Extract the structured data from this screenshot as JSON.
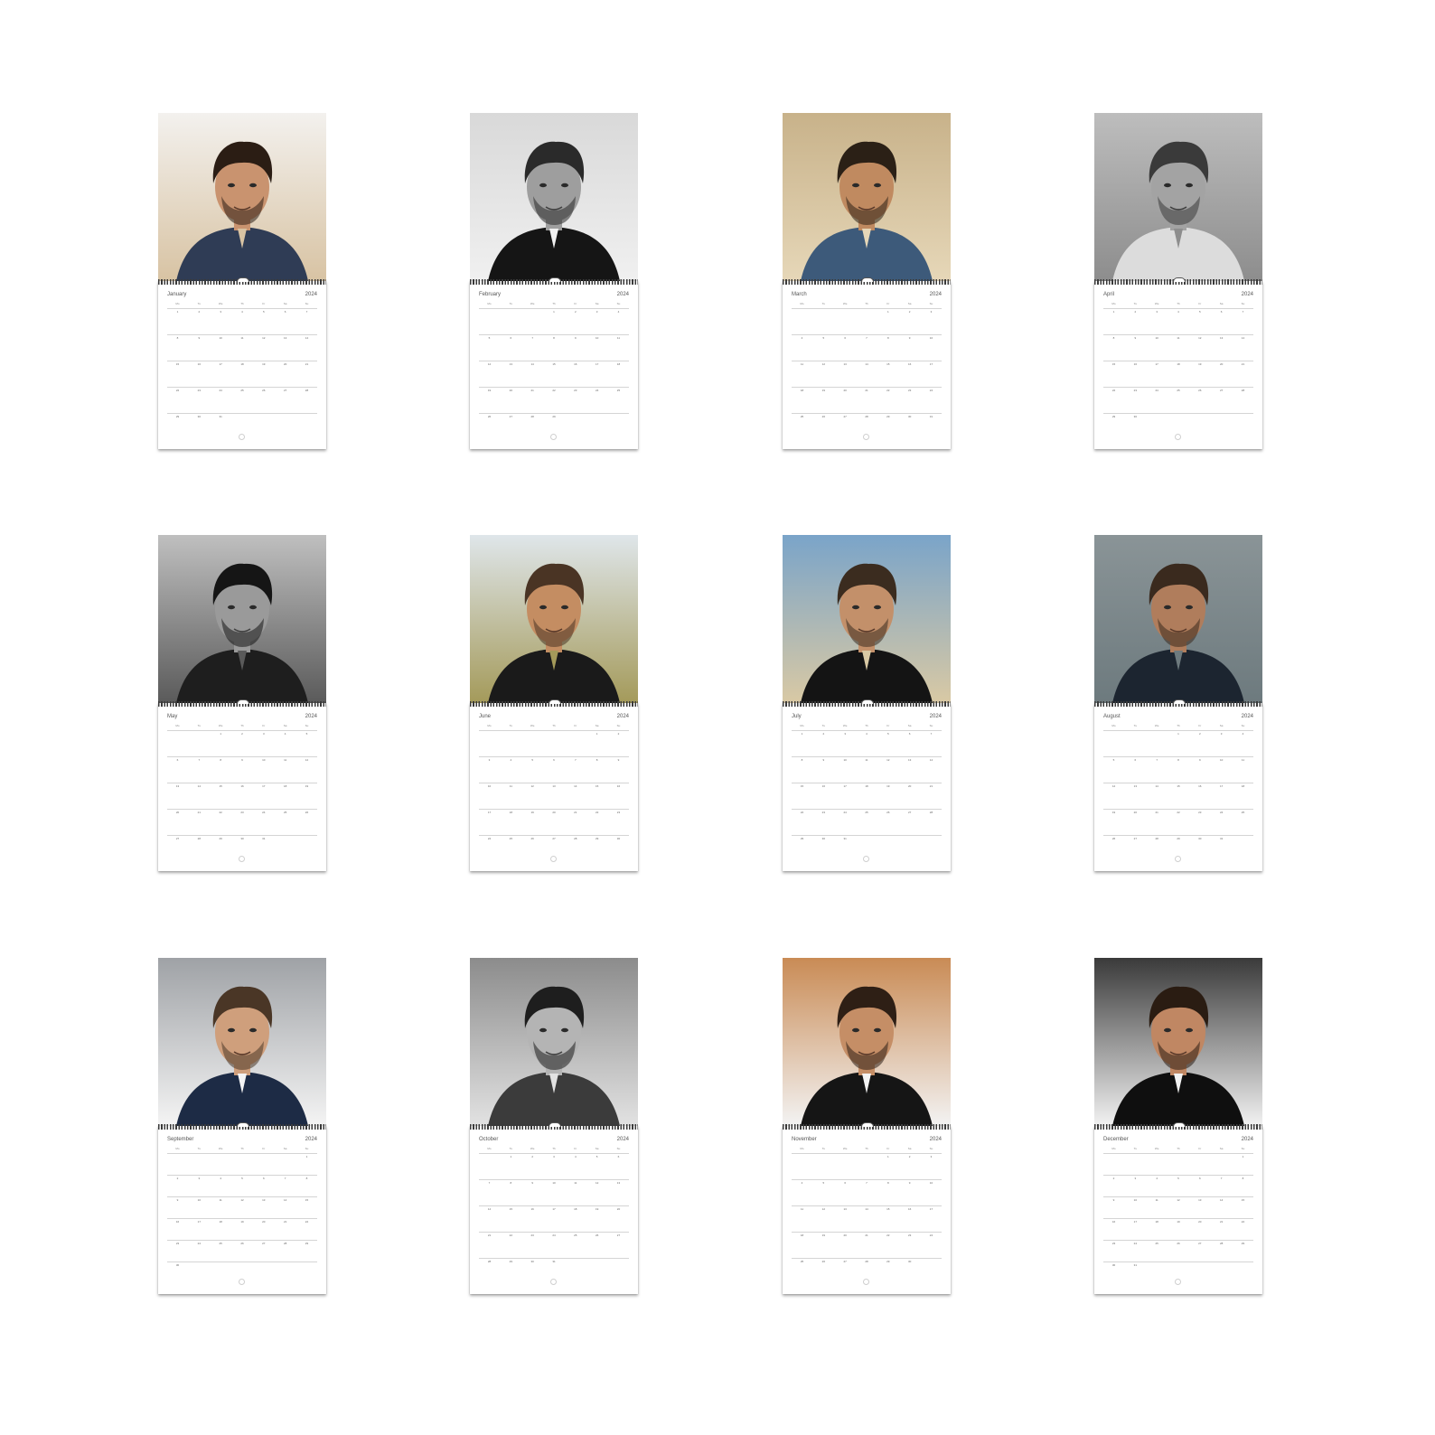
{
  "year": "2024",
  "weekdays": [
    "Mo",
    "Tu",
    "We",
    "Th",
    "Fr",
    "Sa",
    "Su"
  ],
  "months": [
    {
      "name": "January",
      "photo": "portrait-shearling-jacket",
      "tone": "color",
      "rows": [
        [
          "1",
          "2",
          "3",
          "4",
          "5",
          "6",
          "7"
        ],
        [
          "8",
          "9",
          "10",
          "11",
          "12",
          "13",
          "14"
        ],
        [
          "15",
          "16",
          "17",
          "18",
          "19",
          "20",
          "21"
        ],
        [
          "22",
          "23",
          "24",
          "25",
          "26",
          "27",
          "28"
        ],
        [
          "29",
          "30",
          "31",
          "",
          "",
          "",
          ""
        ]
      ]
    },
    {
      "name": "February",
      "photo": "portrait-suit-tie",
      "tone": "bw",
      "rows": [
        [
          "",
          "",
          "",
          "1",
          "2",
          "3",
          "4"
        ],
        [
          "5",
          "6",
          "7",
          "8",
          "9",
          "10",
          "11"
        ],
        [
          "12",
          "13",
          "14",
          "15",
          "16",
          "17",
          "18"
        ],
        [
          "19",
          "20",
          "21",
          "22",
          "23",
          "24",
          "25"
        ],
        [
          "26",
          "27",
          "28",
          "29",
          "",
          "",
          ""
        ]
      ]
    },
    {
      "name": "March",
      "photo": "lounging-on-sofa",
      "tone": "color",
      "rows": [
        [
          "",
          "",
          "",
          "",
          "1",
          "2",
          "3"
        ],
        [
          "4",
          "5",
          "6",
          "7",
          "8",
          "9",
          "10"
        ],
        [
          "11",
          "12",
          "13",
          "14",
          "15",
          "16",
          "17"
        ],
        [
          "18",
          "19",
          "20",
          "21",
          "22",
          "23",
          "24"
        ],
        [
          "25",
          "26",
          "27",
          "28",
          "29",
          "30",
          "31"
        ]
      ]
    },
    {
      "name": "April",
      "photo": "portrait-hand-on-cheek",
      "tone": "bw",
      "rows": [
        [
          "1",
          "2",
          "3",
          "4",
          "5",
          "6",
          "7"
        ],
        [
          "8",
          "9",
          "10",
          "11",
          "12",
          "13",
          "14"
        ],
        [
          "15",
          "16",
          "17",
          "18",
          "19",
          "20",
          "21"
        ],
        [
          "22",
          "23",
          "24",
          "25",
          "26",
          "27",
          "28"
        ],
        [
          "29",
          "30",
          "",
          "",
          "",
          "",
          ""
        ]
      ]
    },
    {
      "name": "May",
      "photo": "portrait-hand-in-hair",
      "tone": "bw",
      "rows": [
        [
          "",
          "",
          "1",
          "2",
          "3",
          "4",
          "5"
        ],
        [
          "6",
          "7",
          "8",
          "9",
          "10",
          "11",
          "12"
        ],
        [
          "13",
          "14",
          "15",
          "16",
          "17",
          "18",
          "19"
        ],
        [
          "20",
          "21",
          "22",
          "23",
          "24",
          "25",
          "26"
        ],
        [
          "27",
          "28",
          "29",
          "30",
          "31",
          "",
          ""
        ]
      ]
    },
    {
      "name": "June",
      "photo": "shirtless-in-field",
      "tone": "color",
      "rows": [
        [
          "",
          "",
          "",
          "",
          "",
          "1",
          "2"
        ],
        [
          "3",
          "4",
          "5",
          "6",
          "7",
          "8",
          "9"
        ],
        [
          "10",
          "11",
          "12",
          "13",
          "14",
          "15",
          "16"
        ],
        [
          "17",
          "18",
          "19",
          "20",
          "21",
          "22",
          "23"
        ],
        [
          "24",
          "25",
          "26",
          "27",
          "28",
          "29",
          "30"
        ]
      ]
    },
    {
      "name": "July",
      "photo": "leather-jacket-sunglasses",
      "tone": "color",
      "rows": [
        [
          "1",
          "2",
          "3",
          "4",
          "5",
          "6",
          "7"
        ],
        [
          "8",
          "9",
          "10",
          "11",
          "12",
          "13",
          "14"
        ],
        [
          "15",
          "16",
          "17",
          "18",
          "19",
          "20",
          "21"
        ],
        [
          "22",
          "23",
          "24",
          "25",
          "26",
          "27",
          "28"
        ],
        [
          "29",
          "30",
          "31",
          "",
          "",
          "",
          ""
        ]
      ]
    },
    {
      "name": "August",
      "photo": "bearded-portrait",
      "tone": "color",
      "rows": [
        [
          "",
          "",
          "",
          "1",
          "2",
          "3",
          "4"
        ],
        [
          "5",
          "6",
          "7",
          "8",
          "9",
          "10",
          "11"
        ],
        [
          "12",
          "13",
          "14",
          "15",
          "16",
          "17",
          "18"
        ],
        [
          "19",
          "20",
          "21",
          "22",
          "23",
          "24",
          "25"
        ],
        [
          "26",
          "27",
          "28",
          "29",
          "30",
          "31",
          ""
        ]
      ]
    },
    {
      "name": "September",
      "photo": "hands-on-head-blazer",
      "tone": "color",
      "rows": [
        [
          "",
          "",
          "",
          "",
          "",
          "",
          "1"
        ],
        [
          "2",
          "3",
          "4",
          "5",
          "6",
          "7",
          "8"
        ],
        [
          "9",
          "10",
          "11",
          "12",
          "13",
          "14",
          "15"
        ],
        [
          "16",
          "17",
          "18",
          "19",
          "20",
          "21",
          "22"
        ],
        [
          "23",
          "24",
          "25",
          "26",
          "27",
          "28",
          "29"
        ],
        [
          "30",
          "",
          "",
          "",
          "",
          "",
          ""
        ]
      ]
    },
    {
      "name": "October",
      "photo": "bearded-smile",
      "tone": "bw",
      "rows": [
        [
          "",
          "1",
          "2",
          "3",
          "4",
          "5",
          "6"
        ],
        [
          "7",
          "8",
          "9",
          "10",
          "11",
          "12",
          "13"
        ],
        [
          "14",
          "15",
          "16",
          "17",
          "18",
          "19",
          "20"
        ],
        [
          "21",
          "22",
          "23",
          "24",
          "25",
          "26",
          "27"
        ],
        [
          "28",
          "29",
          "30",
          "31",
          "",
          "",
          ""
        ]
      ]
    },
    {
      "name": "November",
      "photo": "red-carpet-smile",
      "tone": "color",
      "rows": [
        [
          "",
          "",
          "",
          "",
          "1",
          "2",
          "3"
        ],
        [
          "4",
          "5",
          "6",
          "7",
          "8",
          "9",
          "10"
        ],
        [
          "11",
          "12",
          "13",
          "14",
          "15",
          "16",
          "17"
        ],
        [
          "18",
          "19",
          "20",
          "21",
          "22",
          "23",
          "24"
        ],
        [
          "25",
          "26",
          "27",
          "28",
          "29",
          "30",
          ""
        ]
      ]
    },
    {
      "name": "December",
      "photo": "tuxedo-smile",
      "tone": "color",
      "rows": [
        [
          "",
          "",
          "",
          "",
          "",
          "",
          "1"
        ],
        [
          "2",
          "3",
          "4",
          "5",
          "6",
          "7",
          "8"
        ],
        [
          "9",
          "10",
          "11",
          "12",
          "13",
          "14",
          "15"
        ],
        [
          "16",
          "17",
          "18",
          "19",
          "20",
          "21",
          "22"
        ],
        [
          "23",
          "24",
          "25",
          "26",
          "27",
          "28",
          "29"
        ],
        [
          "30",
          "31",
          "",
          "",
          "",
          "",
          ""
        ]
      ]
    }
  ]
}
